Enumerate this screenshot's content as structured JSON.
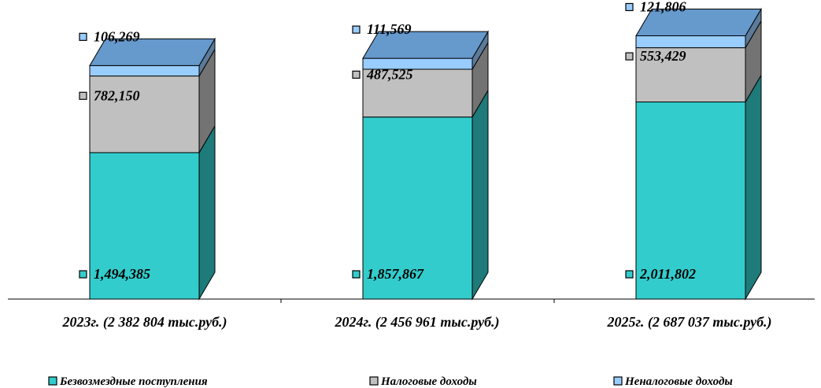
{
  "chart_data": {
    "type": "stacked-bar-3d",
    "categories": [
      "2023г. (2 382 804 тыс.руб.)",
      "2024г. (2 456 961 тыс.руб.)",
      "2025г. (2 687 037 тыс.руб.)"
    ],
    "series": [
      {
        "name": "Безвозмездные поступления",
        "values": [
          1494385,
          1857867,
          2011802
        ],
        "labels": [
          "1,494,385",
          "1,857,867",
          "2,011,802"
        ],
        "color": "#33CCCC"
      },
      {
        "name": "Налоговые доходы",
        "values": [
          782150,
          487525,
          553429
        ],
        "labels": [
          "782,150",
          "487,525",
          "553,429"
        ],
        "color": "#C0C0C0"
      },
      {
        "name": "Неналоговые доходы",
        "values": [
          106269,
          111569,
          121806
        ],
        "labels": [
          "106,269",
          "111,569",
          "121,806"
        ],
        "color": "#99CCFF"
      }
    ],
    "ylim": [
      0,
      3000000
    ],
    "grid": false,
    "legend": "bottom"
  }
}
